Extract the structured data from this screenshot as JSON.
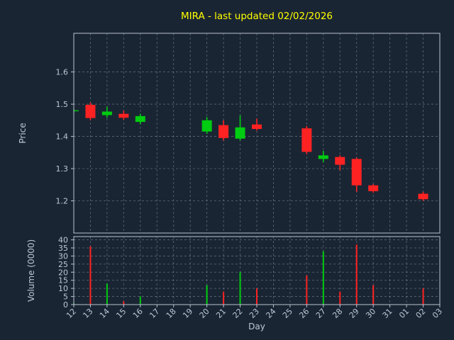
{
  "title": "MIRA - last updated 02/02/2026",
  "colors": {
    "background": "#1a2533",
    "title": "#ffff00",
    "text": "#bcc8d8",
    "grid": "#aebdcc",
    "spine": "#b9c3cf",
    "up": "#00cc11",
    "down": "#ff2222"
  },
  "chart_data": {
    "type": "candlestick",
    "title": "MIRA - last updated 02/02/2026",
    "xlabel": "Day",
    "price_ylabel": "Price",
    "volume_ylabel": "Volume (0000)",
    "x_ticks": [
      "12",
      "13",
      "14",
      "15",
      "16",
      "17",
      "18",
      "19",
      "20",
      "21",
      "22",
      "23",
      "24",
      "25",
      "26",
      "27",
      "28",
      "29",
      "30",
      "31",
      "01",
      "02",
      "03"
    ],
    "price_ticks": [
      "1.2",
      "1.3",
      "1.4",
      "1.5",
      "1.6"
    ],
    "price_ylim": [
      1.1,
      1.72
    ],
    "volume_ticks": [
      "0",
      "5",
      "10",
      "15",
      "20",
      "25",
      "30",
      "35",
      "40"
    ],
    "volume_ylim": [
      0,
      42
    ],
    "grid": true,
    "legend": "none",
    "candles": [
      {
        "day": "12",
        "i": 0,
        "open": 1.479,
        "high": 1.486,
        "low": 1.474,
        "close": 1.481,
        "volume": 1
      },
      {
        "day": "13",
        "i": 1,
        "open": 1.498,
        "high": 1.505,
        "low": 1.45,
        "close": 1.457,
        "volume": 36
      },
      {
        "day": "14",
        "i": 2,
        "open": 1.466,
        "high": 1.492,
        "low": 1.458,
        "close": 1.477,
        "volume": 13
      },
      {
        "day": "15",
        "i": 3,
        "open": 1.47,
        "high": 1.48,
        "low": 1.452,
        "close": 1.458,
        "volume": 2
      },
      {
        "day": "16",
        "i": 4,
        "open": 1.445,
        "high": 1.47,
        "low": 1.438,
        "close": 1.463,
        "volume": 5
      },
      {
        "day": "20",
        "i": 8,
        "open": 1.415,
        "high": 1.46,
        "low": 1.408,
        "close": 1.45,
        "volume": 12
      },
      {
        "day": "21",
        "i": 9,
        "open": 1.435,
        "high": 1.45,
        "low": 1.387,
        "close": 1.395,
        "volume": 8
      },
      {
        "day": "22",
        "i": 10,
        "open": 1.393,
        "high": 1.465,
        "low": 1.388,
        "close": 1.428,
        "volume": 20
      },
      {
        "day": "23",
        "i": 11,
        "open": 1.437,
        "high": 1.455,
        "low": 1.418,
        "close": 1.423,
        "volume": 10
      },
      {
        "day": "26",
        "i": 14,
        "open": 1.425,
        "high": 1.432,
        "low": 1.345,
        "close": 1.352,
        "volume": 18
      },
      {
        "day": "27",
        "i": 15,
        "open": 1.33,
        "high": 1.355,
        "low": 1.32,
        "close": 1.341,
        "volume": 33
      },
      {
        "day": "28",
        "i": 16,
        "open": 1.336,
        "high": 1.341,
        "low": 1.295,
        "close": 1.312,
        "volume": 8
      },
      {
        "day": "29",
        "i": 17,
        "open": 1.33,
        "high": 1.334,
        "low": 1.228,
        "close": 1.248,
        "volume": 37
      },
      {
        "day": "30",
        "i": 18,
        "open": 1.248,
        "high": 1.252,
        "low": 1.225,
        "close": 1.23,
        "volume": 12
      },
      {
        "day": "02",
        "i": 21,
        "open": 1.222,
        "high": 1.228,
        "low": 1.2,
        "close": 1.205,
        "volume": 10
      }
    ]
  }
}
